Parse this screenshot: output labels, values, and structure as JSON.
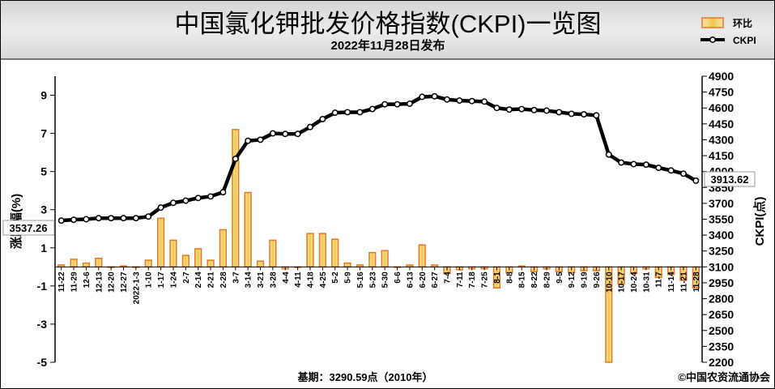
{
  "chart_data": {
    "type": "bar+line",
    "title": "中国氯化钾批发价格指数(CKPI)一览图",
    "subtitle": "2022年11月28日发布",
    "categories": [
      "11-22",
      "11-29",
      "12-6",
      "12-13",
      "12-20",
      "12-27",
      "2022-1-3",
      "1-10",
      "1-17",
      "1-24",
      "2-7",
      "2-14",
      "2-21",
      "2-28",
      "3-7",
      "3-14",
      "3-21",
      "3-28",
      "4-4",
      "4-11",
      "4-18",
      "4-25",
      "5-2",
      "5-9",
      "5-16",
      "5-23",
      "5-30",
      "6-6",
      "6-13",
      "6-20",
      "6-27",
      "7-4",
      "7-11",
      "7-18",
      "7-25",
      "8-1",
      "8-8",
      "8-15",
      "8-22",
      "8-29",
      "9-5",
      "9-12",
      "9-19",
      "9-26",
      "10-10",
      "10-17",
      "10-24",
      "10-31",
      "11-7",
      "11-14",
      "11-21",
      "11-28"
    ],
    "series": [
      {
        "name": "环比",
        "type": "bar",
        "axis": "left",
        "values": [
          0.1,
          0.4,
          0.2,
          0.45,
          0.0,
          0.05,
          0.0,
          0.35,
          2.55,
          1.4,
          0.6,
          0.95,
          0.35,
          1.95,
          7.2,
          3.9,
          0.3,
          1.4,
          -0.1,
          0.0,
          1.75,
          1.75,
          1.45,
          0.2,
          0.1,
          0.75,
          0.85,
          0.0,
          0.1,
          1.15,
          0.1,
          -0.35,
          -0.15,
          -0.1,
          -0.1,
          -1.1,
          -0.3,
          0.05,
          -0.25,
          -0.1,
          -0.25,
          -0.3,
          -0.2,
          -0.2,
          -5.0,
          -0.9,
          -0.35,
          -0.1,
          -0.55,
          -0.4,
          -0.7,
          -1.1
        ]
      },
      {
        "name": "CKPI",
        "type": "line",
        "axis": "right",
        "values": [
          3537.26,
          3545,
          3550,
          3560,
          3560,
          3560,
          3560,
          3575,
          3660,
          3705,
          3725,
          3750,
          3765,
          3805,
          4120,
          4290,
          4300,
          4360,
          4355,
          4355,
          4420,
          4495,
          4555,
          4560,
          4560,
          4590,
          4635,
          4635,
          4640,
          4705,
          4710,
          4680,
          4670,
          4665,
          4660,
          4600,
          4585,
          4590,
          4580,
          4575,
          4560,
          4545,
          4540,
          4530,
          4160,
          4085,
          4070,
          4065,
          4035,
          4010,
          3980,
          3913.62
        ]
      }
    ],
    "left_axis": {
      "label": "涨跌幅(%)",
      "ylim": [
        -5,
        10
      ],
      "ticks": [
        "9",
        "7",
        "5",
        "3",
        "1",
        "-1",
        "-3",
        "-5"
      ]
    },
    "right_axis": {
      "label": "CKPI(点)",
      "ylim": [
        2200,
        4900
      ],
      "ticks": [
        "4900",
        "4750",
        "4600",
        "4450",
        "4300",
        "4150",
        "4000",
        "3850",
        "3700",
        "3550",
        "3400",
        "3250",
        "3100",
        "2950",
        "2800",
        "2650",
        "2500",
        "2350",
        "2200"
      ]
    },
    "first_value_label": "3537.26",
    "last_value_label": "3913.62",
    "legend_position": "top-right",
    "grid": false,
    "footer_base": "基期：3290.59点（2010年）",
    "footer_copyright": "©中国农资流通协会",
    "colors": {
      "bar_fill": "#F5D26A",
      "bar_stroke": "#E0791F",
      "line": "#000000",
      "marker_fill": "#ffffff"
    }
  }
}
